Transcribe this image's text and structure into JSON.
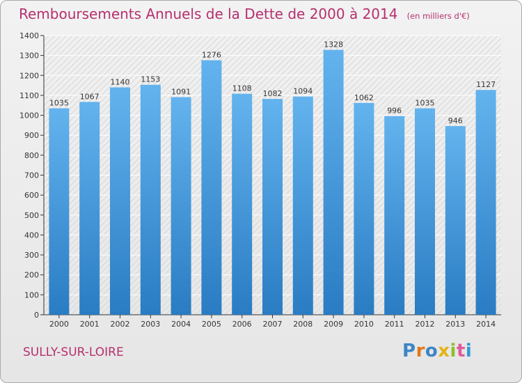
{
  "header": {
    "title": "Remboursements Annuels de la Dette de 2000 à 2014",
    "unit": "(en milliers d'€)"
  },
  "footer": {
    "city": "SULLY-SUR-LOIRE",
    "logo": "Proxiti"
  },
  "chart_data": {
    "type": "bar",
    "title": "Remboursements Annuels de la Dette de 2000 à 2014",
    "subtitle": "(en milliers d'€)",
    "xlabel": "",
    "ylabel": "",
    "categories": [
      "2000",
      "2001",
      "2002",
      "2003",
      "2004",
      "2005",
      "2006",
      "2007",
      "2008",
      "2009",
      "2010",
      "2011",
      "2012",
      "2013",
      "2014"
    ],
    "values": [
      1035,
      1067,
      1140,
      1153,
      1091,
      1276,
      1108,
      1082,
      1094,
      1328,
      1062,
      996,
      1035,
      946,
      1127
    ],
    "ylim": [
      0,
      1400
    ],
    "yticks": [
      0,
      100,
      200,
      300,
      400,
      500,
      600,
      700,
      800,
      900,
      1000,
      1100,
      1200,
      1300,
      1400
    ],
    "grid": true,
    "legend": "none",
    "colors": {
      "bar_top": "#63b3ee",
      "bar_bottom": "#2a7cc3",
      "title": "#b5306e",
      "axis": "#333333",
      "grid": "#ffffff"
    }
  },
  "logo_colors": [
    "#3d86c6",
    "#e2781b",
    "#3d86c6",
    "#e3b318",
    "#8dbd2b",
    "#e05a9b",
    "#2e9bd6"
  ]
}
